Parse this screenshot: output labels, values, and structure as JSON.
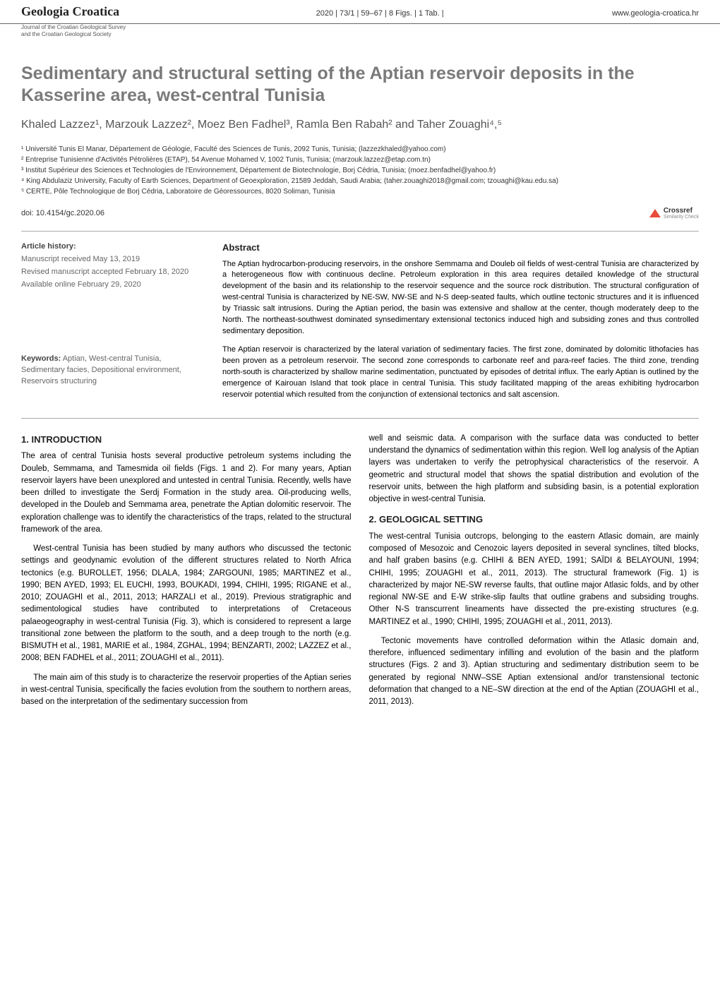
{
  "header": {
    "journal_title": "Geologia Croatica",
    "issue_info": "2020 | 73/1 | 59–67 | 8 Figs. | 1 Tab. |",
    "website": "www.geologia-croatica.hr",
    "subheader_line1": "Journal of the Croatian Geological Survey",
    "subheader_line2": "and the Croatian Geological Society"
  },
  "article": {
    "title": "Sedimentary and structural setting of the Aptian reservoir deposits in the Kasserine area, west-central Tunisia",
    "authors": "Khaled Lazzez¹, Marzouk Lazzez², Moez Ben Fadhel³, Ramla Ben Rabah² and Taher Zouaghi⁴,⁵",
    "affiliations": [
      "¹ Université Tunis El Manar, Département de Géologie, Faculté des Sciences de Tunis, 2092 Tunis, Tunisia; (lazzezkhaled@yahoo.com)",
      "² Entreprise Tunisienne d'Activités Pétrolières (ETAP), 54 Avenue Mohamed V, 1002 Tunis, Tunisia; (marzouk.lazzez@etap.com.tn)",
      "³ Institut Supérieur des Sciences et Technologies de l'Environnement, Département de Biotechnologie, Borj Cédria, Tunisia; (moez.benfadhel@yahoo.fr)",
      "⁴ King Abdulaziz University, Faculty of Earth Sciences, Department of Geoexploration, 21589 Jeddah, Saudi Arabia; (taher.zouaghi2018@gmail.com; tzouaghi@kau.edu.sa)",
      "⁵ CERTE, Pôle Technologique de Borj Cédria, Laboratoire de Géoressources, 8020 Soliman, Tunisia"
    ],
    "doi": "doi: 10.4154/gc.2020.06",
    "crossref_label": "Crossref",
    "crossref_sub": "Similarity Check"
  },
  "abstract": {
    "history_label": "Article history:",
    "history_received": "Manuscript received May 13, 2019",
    "history_revised": "Revised manuscript accepted February 18, 2020",
    "history_available": "Available online February 29, 2020",
    "keywords_label": "Keywords:",
    "keywords_text": "Aptian, West-central Tunisia, Sedimentary facies, Depositional environment, Reservoirs structuring",
    "heading": "Abstract",
    "para1": "The Aptian hydrocarbon-producing reservoirs, in the onshore Semmama and Douleb oil fields of west-central Tunisia are characterized by a heterogeneous flow with continuous decline. Petroleum exploration in this area requires detailed knowledge of the structural development of the basin and its relationship to the reservoir sequence and the source rock distribution. The structural configuration of west-central Tunisia is characterized by NE-SW, NW-SE and N-S deep-seated faults, which outline tectonic structures and it is influenced by Triassic salt intrusions. During the Aptian period, the basin was extensive and shallow at the center, though moderately deep to the North. The northeast-southwest dominated synsedimentary extensional tectonics induced high and subsiding zones and thus controlled sedimentary deposition.",
    "para2": "The Aptian reservoir is characterized by the lateral variation of sedimentary facies. The first zone, dominated by dolomitic lithofacies has been proven as a petroleum reservoir. The second zone corresponds to carbonate reef and para-reef facies. The third zone, trending north-south is characterized by shallow marine sedimentation, punctuated by episodes of detrital influx. The early Aptian is outlined by the emergence of Kairouan Island that took place in central Tunisia. This study facilitated mapping of the areas exhibiting hydrocarbon reservoir potential which resulted from the conjunction of extensional tectonics and salt ascension."
  },
  "body": {
    "sec1_heading": "1. INTRODUCTION",
    "sec1_p1": "The area of central Tunisia hosts several productive petroleum systems including the Douleb, Semmama, and Tamesmida oil fields (Figs. 1 and 2). For many years, Aptian reservoir layers have been unexplored and untested in central Tunisia. Recently, wells have been drilled to investigate the Serdj Formation in the study area. Oil-producing wells, developed in the Douleb and Semmama area, penetrate the Aptian dolomitic reservoir. The exploration challenge was to identify the characteristics of the traps, related to the structural framework of the area.",
    "sec1_p2": "West-central Tunisia has been studied by many authors who discussed the tectonic settings and geodynamic evolution of the different structures related to North Africa tectonics (e.g. BUROLLET, 1956; DLALA, 1984; ZARGOUNI, 1985; MARTINEZ et al., 1990; BEN AYED, 1993; EL EUCHI, 1993, BOUKADI, 1994, CHIHI, 1995; RIGANE et al., 2010; ZOUAGHI et al., 2011, 2013; HARZALI et al., 2019). Previous stratigraphic and sedimentological studies have contributed to interpretations of Cretaceous palaeogeography in west-central Tunisia (Fig. 3), which is considered to represent a large transitional zone between the platform to the south, and a deep trough to the north (e.g. BISMUTH et al., 1981, MARIE et al., 1984, ZGHAL, 1994; BENZARTI, 2002; LAZZEZ et al., 2008; BEN FADHEL et al., 2011; ZOUAGHI et al., 2011).",
    "sec1_p3": "The main aim of this study is to characterize the reservoir properties of the Aptian series in west-central Tunisia, specifically the facies evolution from the southern to northern areas, based on the interpretation of the sedimentary succession from",
    "sec1_p4": "well and seismic data. A comparison with the surface data was conducted to better understand the dynamics of sedimentation within this region. Well log analysis of the Aptian layers was undertaken to verify the petrophysical characteristics of the reservoir. A geometric and structural model that shows the spatial distribution and evolution of the reservoir units, between the high platform and subsiding basin, is a potential exploration objective in west-central Tunisia.",
    "sec2_heading": "2. GEOLOGICAL SETTING",
    "sec2_p1": "The west-central Tunisia outcrops, belonging to the eastern Atlasic domain, are mainly composed of Mesozoic and Cenozoic layers deposited in several synclines, tilted blocks, and half graben basins (e.g. CHIHI & BEN AYED, 1991; SAÏDI & BELAYOUNI, 1994; CHIHI, 1995; ZOUAGHI et al., 2011, 2013). The structural framework (Fig. 1) is characterized by major NE-SW reverse faults, that outline major Atlasic folds, and by other regional NW-SE and E-W strike-slip faults that outline grabens and subsiding troughs. Other N-S transcurrent lineaments have dissected the pre-existing structures (e.g. MARTINEZ et al., 1990; CHIHI, 1995; ZOUAGHI et al., 2011, 2013).",
    "sec2_p2": "Tectonic movements have controlled deformation within the Atlasic domain and, therefore, influenced sedimentary infilling and evolution of the basin and the platform structures (Figs. 2 and 3). Aptian structuring and sedimentary distribution seem to be generated by regional NNW–SSE Aptian extensional and/or transtensional tectonic deformation that changed to a NE–SW direction at the end of the Aptian (ZOUAGHI et al., 2011, 2013)."
  }
}
